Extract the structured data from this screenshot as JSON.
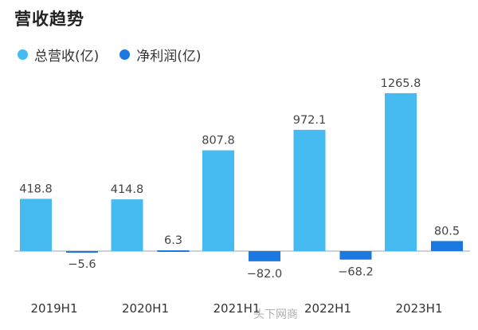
{
  "title": "营收趋势",
  "watermark": "头下网商",
  "colors": {
    "revenue": "#45bbf2",
    "profit": "#1a78e0",
    "baseline": "#9aa6b2"
  },
  "chart_data": {
    "type": "bar",
    "categories": [
      "2019H1",
      "2020H1",
      "2021H1",
      "2022H1",
      "2023H1"
    ],
    "series": [
      {
        "name": "总营收(亿)",
        "values": [
          418.8,
          414.8,
          807.8,
          972.1,
          1265.8
        ],
        "labels": [
          "418.8",
          "414.8",
          "807.8",
          "972.1",
          "1265.8"
        ]
      },
      {
        "name": "净利润(亿)",
        "values": [
          -5.6,
          6.3,
          -82.0,
          -68.2,
          80.5
        ],
        "labels": [
          "−5.6",
          "6.3",
          "−82.0",
          "−68.2",
          "80.5"
        ]
      }
    ],
    "ylim": [
      -200,
      1400
    ],
    "grid": false,
    "legend_position": "top-left"
  }
}
